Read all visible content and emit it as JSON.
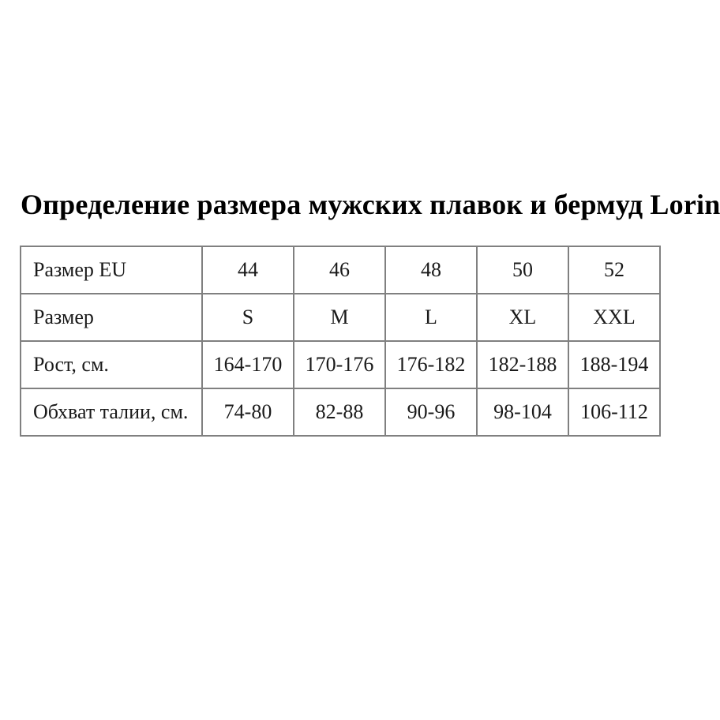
{
  "page": {
    "title": "Определение размера мужских плавок и бермуд Lorin"
  },
  "colors": {
    "table_border": "#808080",
    "text": "#1a1a1a",
    "title_text": "#000000",
    "background": "#ffffff"
  },
  "table": {
    "rows": [
      {
        "label": "Размер EU",
        "values": [
          "44",
          "46",
          "48",
          "50",
          "52"
        ]
      },
      {
        "label": "Размер",
        "values": [
          "S",
          "M",
          "L",
          "XL",
          "XXL"
        ]
      },
      {
        "label": "Рост, см.",
        "values": [
          "164-170",
          "170-176",
          "176-182",
          "182-188",
          "188-194"
        ]
      },
      {
        "label": "Обхват талии, см.",
        "values": [
          "74-80",
          "82-88",
          "90-96",
          "98-104",
          "106-112"
        ]
      }
    ]
  }
}
